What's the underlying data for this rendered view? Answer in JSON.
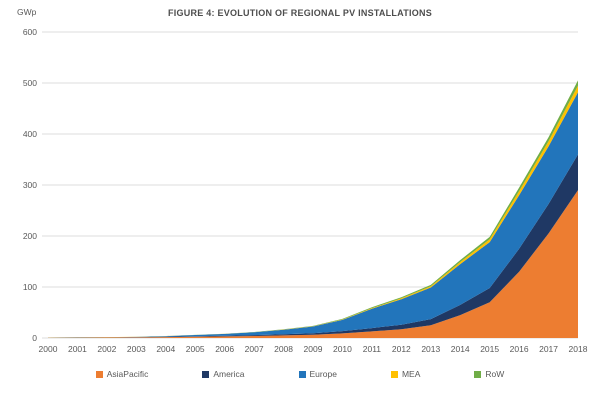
{
  "title": "FIGURE 4: EVOLUTION OF REGIONAL PV INSTALLATIONS",
  "y_axis_unit": "GWp",
  "colors": {
    "asiapacific": "#ED7D31",
    "america": "#1F3864",
    "europe": "#2275BB",
    "mea": "#FFC000",
    "row": "#70AD47",
    "gridline": "#DCDCDC",
    "axis_text": "#595959",
    "title_text": "#4D4D4D",
    "background": "#FFFFFF"
  },
  "chart_data": {
    "type": "area",
    "stacked": true,
    "title": "FIGURE 4: EVOLUTION OF REGIONAL PV INSTALLATIONS",
    "ylabel": "GWp",
    "xlabel": "",
    "grid": true,
    "legend_position": "bottom",
    "ylim": [
      0,
      600
    ],
    "y_ticks": [
      0,
      100,
      200,
      300,
      400,
      500,
      600
    ],
    "x": [
      2000,
      2001,
      2002,
      2003,
      2004,
      2005,
      2006,
      2007,
      2008,
      2009,
      2010,
      2011,
      2012,
      2013,
      2014,
      2015,
      2016,
      2017,
      2018
    ],
    "series": [
      {
        "name": "AsiaPacific",
        "color": "#ED7D31",
        "values": [
          0.5,
          0.7,
          0.9,
          1.2,
          1.8,
          2.5,
          3.2,
          4,
          5,
          6.5,
          9,
          13,
          17,
          25,
          45,
          70,
          130,
          205,
          290
        ]
      },
      {
        "name": "America",
        "color": "#1F3864",
        "values": [
          0.15,
          0.2,
          0.3,
          0.4,
          0.6,
          0.9,
          1.2,
          1.6,
          2.2,
          3,
          4.5,
          6.5,
          9,
          12,
          20,
          28,
          45,
          58,
          70
        ]
      },
      {
        "name": "Europe",
        "color": "#2275BB",
        "values": [
          0.2,
          0.3,
          0.4,
          0.6,
          1.3,
          2.4,
          3.6,
          5.5,
          9,
          13,
          22,
          38,
          50,
          62,
          80,
          90,
          105,
          113,
          122
        ]
      },
      {
        "name": "MEA",
        "color": "#FFC000",
        "values": [
          0.05,
          0.06,
          0.08,
          0.1,
          0.13,
          0.17,
          0.22,
          0.3,
          0.4,
          0.5,
          0.8,
          1.2,
          1.8,
          2.5,
          4,
          5.5,
          8,
          10,
          13
        ]
      },
      {
        "name": "RoW",
        "color": "#70AD47",
        "values": [
          0.05,
          0.07,
          0.09,
          0.12,
          0.16,
          0.2,
          0.28,
          0.4,
          0.6,
          0.8,
          1.1,
          1.6,
          2,
          2.7,
          3.8,
          4.8,
          7,
          8,
          10
        ]
      }
    ]
  }
}
